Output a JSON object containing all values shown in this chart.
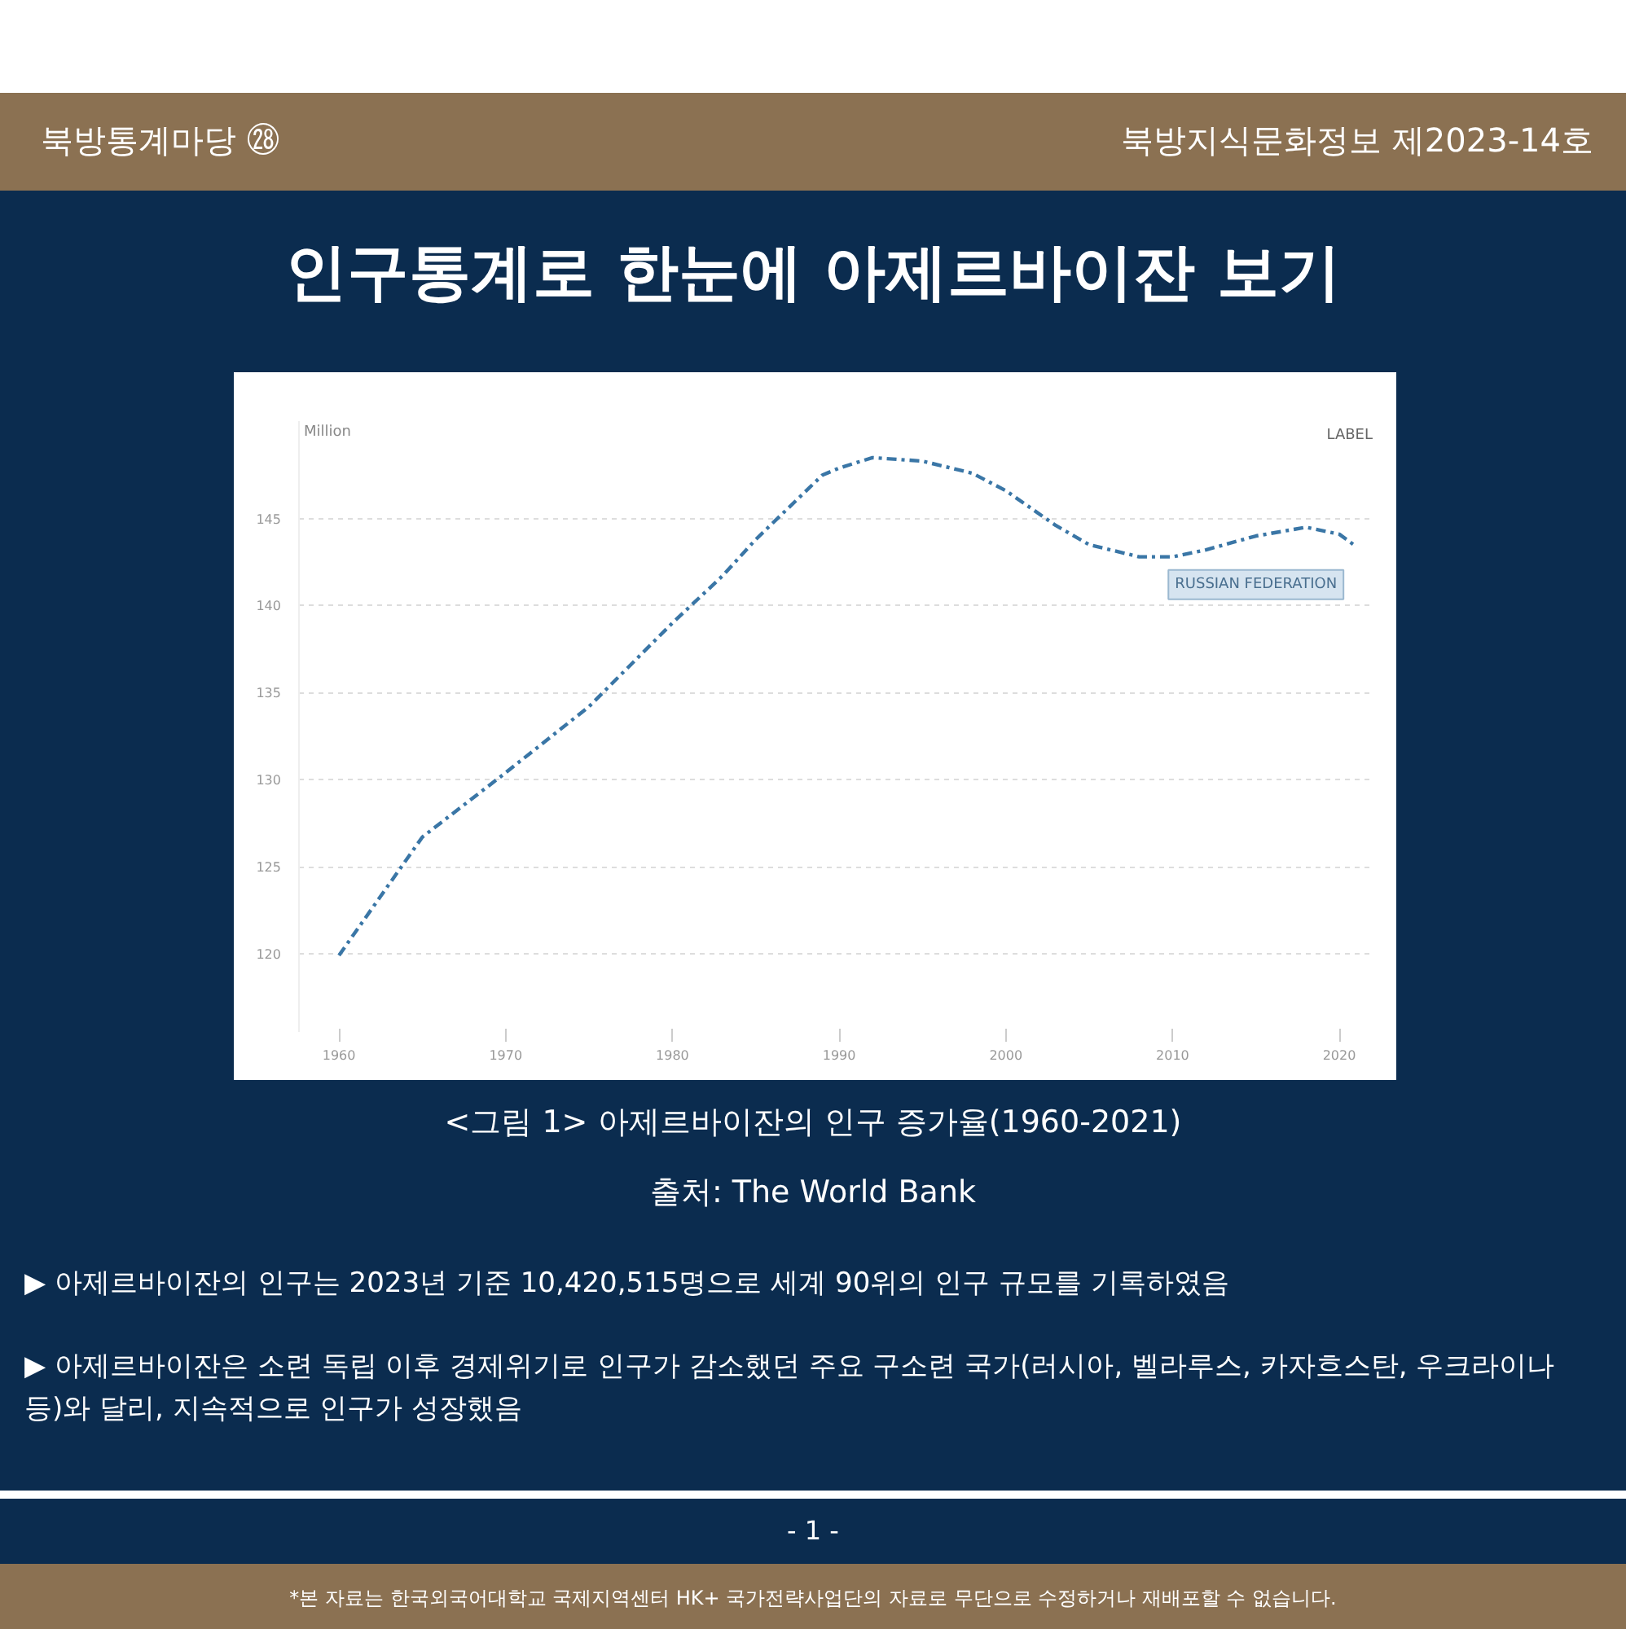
{
  "chart_data": {
    "type": "line",
    "title": "인구통계로 한눈에 아제르바이잔 보기",
    "ylabel": "Million",
    "annotations": [
      "북방통계마당 ㉘",
      "북방지식문화정보 제2023-14호",
      "<그림 1> 아제르바이잔의 인구 증가율(1960-2021)",
      "출처: The World Bank",
      "▶ 아제르바이잔의 인구는 2023년 기준 10,420,515명으로 세계 90위의 인구 규모를 기록하였음",
      "▶ 아제르바이잔은 소련 독립 이후 경제위기로 인구가 감소했던 주요 구소련 국가(러시아, 벨라루스, 카자흐스탄, 우크라이나 등)와 달리, 지속적으로 인구가 성장했음",
      "- 1 -",
      "*본 자료는 한국외국어대학교 국제지역센터 HK+ 국가전략사업단의 자료로 무단으로 수정하거나 재배포할 수 없습니다.",
      "LABEL"
    ],
    "x": [
      1960,
      1965,
      1970,
      1975,
      1980,
      1983,
      1985,
      1989,
      1990,
      1992,
      1995,
      1998,
      2000,
      2003,
      2005,
      2008,
      2010,
      2012,
      2015,
      2018,
      2020,
      2021
    ],
    "series": [
      {
        "name": "RUSSIAN FEDERATION",
        "color": "#3a76a6",
        "values": [
          119.9,
          126.7,
          130.4,
          134.2,
          139.0,
          141.7,
          143.8,
          147.5,
          147.9,
          148.5,
          148.3,
          147.6,
          146.6,
          144.6,
          143.5,
          142.8,
          142.8,
          143.2,
          144.0,
          144.5,
          144.1,
          143.4
        ]
      }
    ],
    "xlim": [
      1957.6,
      2022
    ],
    "ylim": [
      115.5,
      150.6
    ],
    "xticks": [
      1960,
      1970,
      1980,
      1990,
      2000,
      2010,
      2020
    ],
    "yticks": [
      120,
      125,
      130,
      135,
      140,
      145
    ],
    "grid": "y",
    "line_style": "dashed"
  }
}
